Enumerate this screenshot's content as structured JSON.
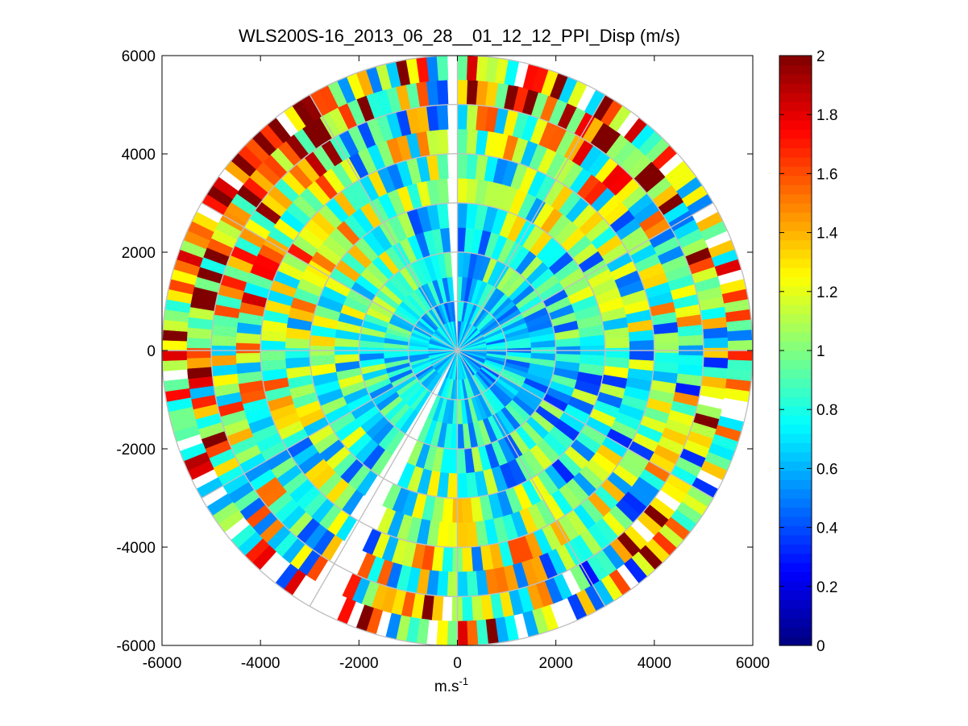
{
  "chart_data": {
    "type": "heatmap",
    "subtype": "polar-ppi",
    "title": "WLS200S-16_2013_06_28__01_12_12_PPI_Disp (m/s)",
    "xlabel": "m.s",
    "xlabel_superscript": "-1",
    "ylabel": "",
    "xlim": [
      -6000,
      6000
    ],
    "ylim": [
      -6000,
      6000
    ],
    "x_ticks": [
      -6000,
      -4000,
      -2000,
      0,
      2000,
      4000,
      6000
    ],
    "y_ticks": [
      -6000,
      -4000,
      -2000,
      0,
      2000,
      4000,
      6000
    ],
    "x_tick_labels": [
      "-6000",
      "-4000",
      "-2000",
      "0",
      "2000",
      "4000",
      "6000"
    ],
    "y_tick_labels": [
      "-6000",
      "-4000",
      "-2000",
      "0",
      "2000",
      "4000",
      "6000"
    ],
    "max_range": 6000,
    "range_rings": [
      1000,
      2000,
      3000,
      4000,
      5000,
      6000
    ],
    "spoke_angles_deg": [
      0,
      30,
      60,
      90,
      120,
      150,
      180,
      210,
      240,
      270,
      300,
      330
    ],
    "grid": true,
    "colormap": "jet",
    "clim": [
      0,
      2
    ],
    "colorbar_ticks": [
      0,
      0.2,
      0.4,
      0.6,
      0.8,
      1,
      1.2,
      1.4,
      1.6,
      1.8,
      2
    ],
    "colorbar_tick_labels": [
      "0",
      "0.2",
      "0.4",
      "0.6",
      "0.8",
      "1",
      "1.2",
      "1.4",
      "1.6",
      "1.8",
      "2"
    ],
    "colorbar_position": "right",
    "range_bins_m": [
      0,
      600,
      1000,
      1500,
      2000,
      2500,
      3000,
      3500,
      4000,
      4500,
      5000,
      5500,
      6000
    ],
    "bin_mean_value": [
      0.62,
      0.65,
      0.68,
      0.72,
      0.76,
      0.8,
      0.85,
      0.9,
      0.95,
      1.0,
      1.05,
      1.1
    ],
    "sector_bias": [
      {
        "from_deg": 280,
        "to_deg": 330,
        "delta": 0.45
      },
      {
        "from_deg": 20,
        "to_deg": 50,
        "delta": 0.3
      },
      {
        "from_deg": 240,
        "to_deg": 280,
        "delta": 0.25
      },
      {
        "from_deg": 90,
        "to_deg": 160,
        "delta": -0.1
      },
      {
        "from_deg": 160,
        "to_deg": 200,
        "delta": 0.12
      }
    ],
    "missing_sectors_deg": [
      [
        358,
        361
      ],
      [
        205,
        212
      ]
    ],
    "background_color": "#ffffff",
    "grid_color": "#c0c0c0"
  }
}
